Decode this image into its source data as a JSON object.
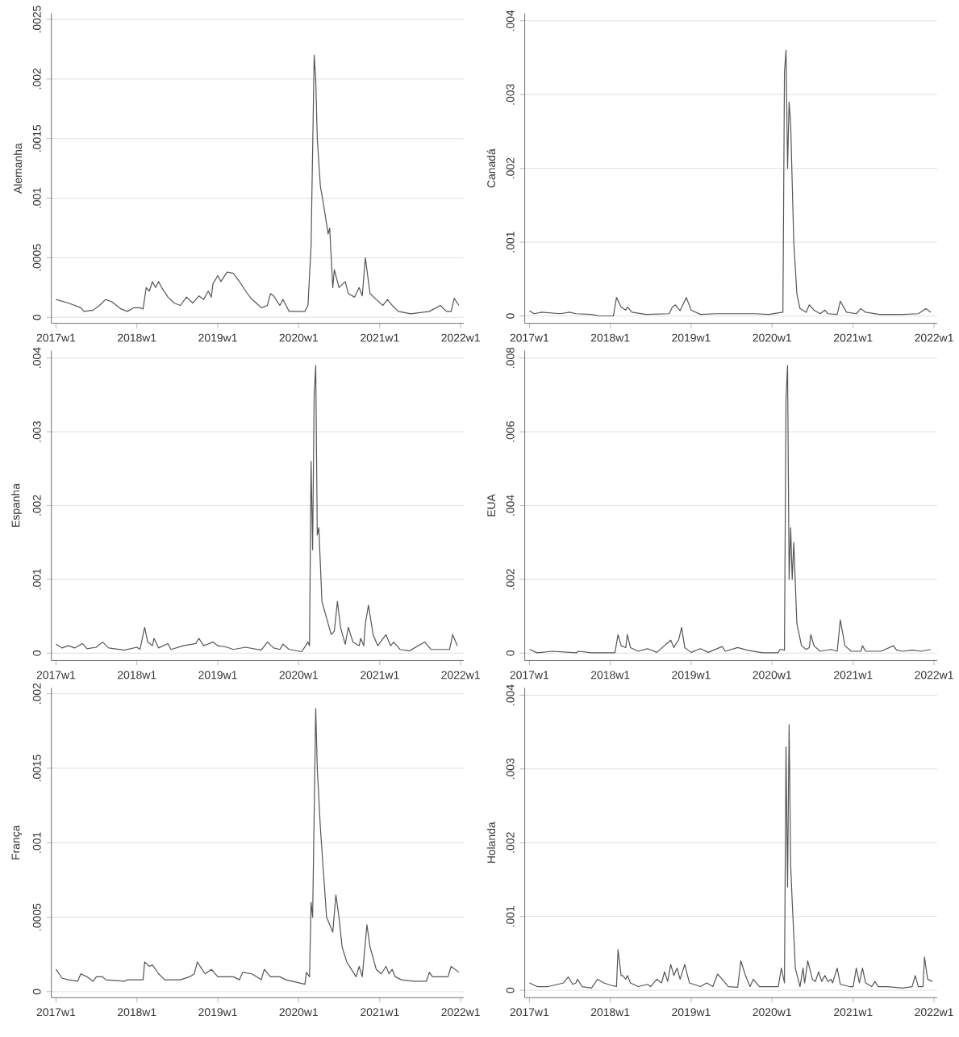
{
  "chart_data": [
    {
      "type": "line",
      "ylabel": "Alemanha",
      "color": "#555555",
      "grid": "y",
      "xlim": [
        "2016-12-11",
        "2022-01-15"
      ],
      "ylim": [
        -5e-05,
        0.00255
      ],
      "xticks": [
        {
          "value": "2017-01-01",
          "label": "2017w1"
        },
        {
          "value": "2018-01-01",
          "label": "2018w1"
        },
        {
          "value": "2019-01-01",
          "label": "2019w1"
        },
        {
          "value": "2020-01-01",
          "label": "2020w1"
        },
        {
          "value": "2021-01-01",
          "label": "2021w1"
        },
        {
          "value": "2022-01-01",
          "label": "2022w1"
        }
      ],
      "yticks": [
        0,
        {
          "value": 0.0005,
          "label": ".0005"
        },
        {
          "value": 0.001,
          "label": ".001"
        },
        {
          "value": 0.0015,
          "label": ".0015"
        },
        {
          "value": 0.002,
          "label": ".002"
        },
        {
          "value": 0.0025,
          "label": ".0025"
        }
      ],
      "x": [
        "2017-01-01",
        "2017-02-26",
        "2017-04-23",
        "2017-05-07",
        "2017-06-18",
        "2017-07-16",
        "2017-08-13",
        "2017-09-10",
        "2017-10-22",
        "2017-11-19",
        "2017-12-17",
        "2018-01-15",
        "2018-01-29",
        "2018-02-12",
        "2018-02-26",
        "2018-03-12",
        "2018-03-26",
        "2018-04-09",
        "2018-04-23",
        "2018-05-21",
        "2018-06-18",
        "2018-07-16",
        "2018-08-13",
        "2018-09-10",
        "2018-10-08",
        "2018-10-29",
        "2018-11-19",
        "2018-12-03",
        "2018-12-10",
        "2019-01-01",
        "2019-01-15",
        "2019-02-12",
        "2019-03-12",
        "2019-04-09",
        "2019-05-07",
        "2019-06-04",
        "2019-06-18",
        "2019-07-16",
        "2019-08-13",
        "2019-08-27",
        "2019-09-10",
        "2019-10-08",
        "2019-10-22",
        "2019-11-05",
        "2019-11-19",
        "2020-01-01",
        "2020-01-29",
        "2020-02-12",
        "2020-02-26",
        "2020-03-11",
        "2020-03-18",
        "2020-03-25",
        "2020-04-08",
        "2020-04-22",
        "2020-05-13",
        "2020-05-20",
        "2020-06-03",
        "2020-06-10",
        "2020-07-01",
        "2020-07-29",
        "2020-08-12",
        "2020-09-09",
        "2020-09-30",
        "2020-10-14",
        "2020-10-28",
        "2020-11-18",
        "2020-12-16",
        "2021-01-15",
        "2021-02-05",
        "2021-02-26",
        "2021-03-26",
        "2021-05-21",
        "2021-08-13",
        "2021-10-01",
        "2021-10-29",
        "2021-11-19",
        "2021-12-03",
        "2021-12-24"
      ],
      "values": [
        0.00015,
        0.00012,
        8e-05,
        5e-05,
        6e-05,
        0.0001,
        0.00015,
        0.00013,
        7e-05,
        5e-05,
        8e-05,
        8e-05,
        7e-05,
        0.00025,
        0.00022,
        0.0003,
        0.00025,
        0.0003,
        0.00025,
        0.00017,
        0.00012,
        0.0001,
        0.00017,
        0.00012,
        0.00018,
        0.00015,
        0.00022,
        0.00017,
        0.00028,
        0.00035,
        0.0003,
        0.00038,
        0.00037,
        0.0003,
        0.00022,
        0.00015,
        0.00013,
        8e-05,
        0.0001,
        0.0002,
        0.00018,
        0.0001,
        0.00015,
        0.0001,
        5e-05,
        5e-05,
        5e-05,
        0.0001,
        0.0006,
        0.0022,
        0.002,
        0.0015,
        0.0011,
        0.00095,
        0.0007,
        0.00075,
        0.00025,
        0.0004,
        0.00025,
        0.0003,
        0.0002,
        0.00017,
        0.00025,
        0.00018,
        0.0005,
        0.0002,
        0.00015,
        0.0001,
        0.00015,
        0.0001,
        5e-05,
        3e-05,
        5e-05,
        0.0001,
        5e-05,
        5e-05,
        0.00016,
        0.0001
      ]
    },
    {
      "type": "line",
      "ylabel": "Canadá",
      "color": "#555555",
      "grid": "y",
      "xlim": [
        "2016-12-11",
        "2022-01-15"
      ],
      "ylim": [
        -0.0001,
        0.0041
      ],
      "xticks": [
        {
          "value": "2017-01-01",
          "label": "2017w1"
        },
        {
          "value": "2018-01-01",
          "label": "2018w1"
        },
        {
          "value": "2019-01-01",
          "label": "2019w1"
        },
        {
          "value": "2020-01-01",
          "label": "2020w1"
        },
        {
          "value": "2021-01-01",
          "label": "2021w1"
        },
        {
          "value": "2022-01-01",
          "label": "2022w1"
        }
      ],
      "yticks": [
        0,
        {
          "value": 0.001,
          "label": ".001"
        },
        {
          "value": 0.002,
          "label": ".002"
        },
        {
          "value": 0.003,
          "label": ".003"
        },
        {
          "value": 0.004,
          "label": ".004"
        }
      ],
      "x": [
        "2017-01-01",
        "2017-01-22",
        "2017-02-26",
        "2017-05-21",
        "2017-07-02",
        "2017-07-30",
        "2017-10-08",
        "2017-11-12",
        "2018-01-15",
        "2018-01-29",
        "2018-02-19",
        "2018-03-12",
        "2018-03-19",
        "2018-04-09",
        "2018-06-11",
        "2018-09-24",
        "2018-10-08",
        "2018-10-22",
        "2018-11-12",
        "2018-12-10",
        "2019-01-01",
        "2019-02-12",
        "2019-04-23",
        "2019-07-02",
        "2019-10-15",
        "2019-12-17",
        "2020-02-19",
        "2020-02-26",
        "2020-03-04",
        "2020-03-11",
        "2020-03-18",
        "2020-03-25",
        "2020-04-08",
        "2020-04-22",
        "2020-05-06",
        "2020-06-03",
        "2020-06-17",
        "2020-07-08",
        "2020-08-05",
        "2020-08-26",
        "2020-09-09",
        "2020-10-21",
        "2020-11-04",
        "2020-12-02",
        "2021-01-15",
        "2021-02-05",
        "2021-02-26",
        "2021-04-30",
        "2021-08-13",
        "2021-10-22",
        "2021-11-26",
        "2021-12-17"
      ],
      "values": [
        7e-05,
        3e-05,
        5e-05,
        3e-05,
        5e-05,
        3e-05,
        2e-05,
        0,
        0,
        0.00025,
        0.00012,
        8e-05,
        0.00012,
        5e-05,
        2e-05,
        3e-05,
        0.00012,
        0.00015,
        7e-05,
        0.00025,
        8e-05,
        2e-05,
        3e-05,
        3e-05,
        3e-05,
        2e-05,
        5e-05,
        0.0033,
        0.0036,
        0.002,
        0.0029,
        0.0026,
        0.001,
        0.0003,
        0.0001,
        5e-05,
        0.00015,
        8e-05,
        3e-05,
        8e-05,
        3e-05,
        2e-05,
        0.0002,
        5e-05,
        3e-05,
        0.0001,
        5e-05,
        2e-05,
        2e-05,
        3e-05,
        0.0001,
        5e-05
      ]
    },
    {
      "type": "line",
      "ylabel": "Espanha",
      "color": "#555555",
      "grid": "y",
      "xlim": [
        "2016-12-11",
        "2022-01-15"
      ],
      "ylim": [
        -0.0001,
        0.0041
      ],
      "xticks": [
        {
          "value": "2017-01-01",
          "label": "2017w1"
        },
        {
          "value": "2018-01-01",
          "label": "2018w1"
        },
        {
          "value": "2019-01-01",
          "label": "2019w1"
        },
        {
          "value": "2020-01-01",
          "label": "2020w1"
        },
        {
          "value": "2021-01-01",
          "label": "2021w1"
        },
        {
          "value": "2022-01-01",
          "label": "2022w1"
        }
      ],
      "yticks": [
        0,
        {
          "value": 0.001,
          "label": ".001"
        },
        {
          "value": 0.002,
          "label": ".002"
        },
        {
          "value": 0.003,
          "label": ".003"
        },
        {
          "value": 0.004,
          "label": ".004"
        }
      ],
      "x": [
        "2017-01-01",
        "2017-01-29",
        "2017-02-26",
        "2017-03-26",
        "2017-04-30",
        "2017-05-21",
        "2017-07-02",
        "2017-07-30",
        "2017-08-27",
        "2017-11-05",
        "2018-01-01",
        "2018-01-15",
        "2018-02-05",
        "2018-02-19",
        "2018-03-12",
        "2018-03-19",
        "2018-04-09",
        "2018-05-21",
        "2018-06-04",
        "2018-07-30",
        "2018-09-24",
        "2018-10-08",
        "2018-10-29",
        "2018-12-10",
        "2019-01-01",
        "2019-02-12",
        "2019-03-12",
        "2019-05-07",
        "2019-07-16",
        "2019-08-13",
        "2019-09-10",
        "2019-10-08",
        "2019-10-22",
        "2019-11-19",
        "2020-01-15",
        "2020-02-12",
        "2020-02-19",
        "2020-02-26",
        "2020-03-04",
        "2020-03-11",
        "2020-03-18",
        "2020-03-25",
        "2020-04-01",
        "2020-04-15",
        "2020-05-13",
        "2020-05-27",
        "2020-06-10",
        "2020-06-24",
        "2020-07-08",
        "2020-07-29",
        "2020-08-12",
        "2020-09-02",
        "2020-09-30",
        "2020-10-07",
        "2020-10-21",
        "2020-10-28",
        "2020-11-11",
        "2020-12-02",
        "2020-12-23",
        "2021-01-29",
        "2021-02-19",
        "2021-03-05",
        "2021-04-02",
        "2021-05-14",
        "2021-07-23",
        "2021-08-20",
        "2021-11-12",
        "2021-11-26",
        "2021-12-17"
      ],
      "values": [
        0.00012,
        7e-05,
        0.0001,
        7e-05,
        0.00013,
        6e-05,
        8e-05,
        0.00015,
        7e-05,
        4e-05,
        8e-05,
        5e-05,
        0.00035,
        0.00015,
        0.0001,
        0.0002,
        7e-05,
        0.00013,
        5e-05,
        0.0001,
        0.00013,
        0.0002,
        0.0001,
        0.00015,
        0.0001,
        8e-05,
        5e-05,
        8e-05,
        4e-05,
        0.00015,
        7e-05,
        5e-05,
        0.00012,
        5e-05,
        2e-05,
        0.00015,
        0.0001,
        0.0026,
        0.0014,
        0.0035,
        0.0039,
        0.0016,
        0.0017,
        0.0007,
        0.0004,
        0.00025,
        0.0003,
        0.0007,
        0.00035,
        0.00012,
        0.00035,
        0.00015,
        0.0001,
        0.0002,
        0.0001,
        0.0004,
        0.00065,
        0.00025,
        0.0001,
        0.00025,
        0.0001,
        0.00015,
        5e-05,
        3e-05,
        0.00015,
        5e-05,
        5e-05,
        0.00025,
        0.0001
      ]
    },
    {
      "type": "line",
      "ylabel": "EUA",
      "color": "#555555",
      "grid": "y",
      "xlim": [
        "2016-12-11",
        "2022-01-15"
      ],
      "ylim": [
        -0.0002,
        0.0082
      ],
      "xticks": [
        {
          "value": "2017-01-01",
          "label": "2017w1"
        },
        {
          "value": "2018-01-01",
          "label": "2018w1"
        },
        {
          "value": "2019-01-01",
          "label": "2019w1"
        },
        {
          "value": "2020-01-01",
          "label": "2020w1"
        },
        {
          "value": "2021-01-01",
          "label": "2021w1"
        },
        {
          "value": "2022-01-01",
          "label": "2022w1"
        }
      ],
      "yticks": [
        0,
        {
          "value": 0.002,
          "label": ".002"
        },
        {
          "value": 0.004,
          "label": ".004"
        },
        {
          "value": 0.006,
          "label": ".006"
        },
        {
          "value": 0.008,
          "label": ".008"
        }
      ],
      "x": [
        "2017-01-01",
        "2017-02-05",
        "2017-04-16",
        "2017-07-30",
        "2017-08-13",
        "2017-10-08",
        "2018-01-22",
        "2018-02-05",
        "2018-02-19",
        "2018-03-12",
        "2018-03-19",
        "2018-04-02",
        "2018-05-07",
        "2018-06-18",
        "2018-07-30",
        "2018-10-01",
        "2018-10-15",
        "2018-10-29",
        "2018-11-05",
        "2018-11-19",
        "2018-12-03",
        "2019-01-01",
        "2019-02-12",
        "2019-03-19",
        "2019-05-21",
        "2019-06-04",
        "2019-07-30",
        "2019-09-10",
        "2019-11-19",
        "2020-01-29",
        "2020-02-05",
        "2020-02-26",
        "2020-03-04",
        "2020-03-11",
        "2020-03-18",
        "2020-03-25",
        "2020-04-01",
        "2020-04-08",
        "2020-04-22",
        "2020-05-13",
        "2020-06-03",
        "2020-06-17",
        "2020-06-24",
        "2020-07-08",
        "2020-08-05",
        "2020-09-23",
        "2020-10-21",
        "2020-11-04",
        "2020-11-25",
        "2020-12-23",
        "2021-02-05",
        "2021-02-12",
        "2021-02-26",
        "2021-05-07",
        "2021-07-02",
        "2021-07-16",
        "2021-08-13",
        "2021-09-24",
        "2021-11-05",
        "2021-12-17"
      ],
      "values": [
        0.0001,
        1e-05,
        5e-05,
        1e-05,
        5e-05,
        1e-05,
        1e-05,
        0.0005,
        0.0002,
        0.00015,
        0.0005,
        0.00015,
        5e-05,
        0.00012,
        2e-05,
        0.00035,
        0.00015,
        0.0003,
        0.00035,
        0.0007,
        0.00015,
        2e-05,
        0.00012,
        2e-05,
        0.00018,
        5e-05,
        0.00015,
        8e-05,
        1e-05,
        1e-05,
        0.0001,
        8e-05,
        0.0069,
        0.0078,
        0.002,
        0.0034,
        0.002,
        0.003,
        0.0008,
        0.0002,
        0.0001,
        0.00015,
        0.0005,
        0.0002,
        5e-05,
        0.0001,
        5e-05,
        0.0009,
        0.0002,
        5e-05,
        5e-05,
        0.0002,
        5e-05,
        5e-05,
        0.0002,
        8e-05,
        5e-05,
        8e-05,
        5e-05,
        0.0001
      ]
    },
    {
      "type": "line",
      "ylabel": "França",
      "color": "#555555",
      "grid": "y",
      "xlim": [
        "2016-12-11",
        "2022-01-15"
      ],
      "ylim": [
        -4e-05,
        0.00204
      ],
      "xticks": [
        {
          "value": "2017-01-01",
          "label": "2017w1"
        },
        {
          "value": "2018-01-01",
          "label": "2018w1"
        },
        {
          "value": "2019-01-01",
          "label": "2019w1"
        },
        {
          "value": "2020-01-01",
          "label": "2020w1"
        },
        {
          "value": "2021-01-01",
          "label": "2021w1"
        },
        {
          "value": "2022-01-01",
          "label": "2022w1"
        }
      ],
      "yticks": [
        0,
        {
          "value": 0.0005,
          "label": ".0005"
        },
        {
          "value": 0.001,
          "label": ".001"
        },
        {
          "value": 0.0015,
          "label": ".0015"
        },
        {
          "value": 0.002,
          "label": ".002"
        }
      ],
      "x": [
        "2017-01-01",
        "2017-01-29",
        "2017-02-26",
        "2017-04-09",
        "2017-04-23",
        "2017-05-21",
        "2017-06-18",
        "2017-07-02",
        "2017-07-30",
        "2017-08-13",
        "2017-11-05",
        "2017-11-19",
        "2018-01-15",
        "2018-01-29",
        "2018-02-05",
        "2018-02-26",
        "2018-03-12",
        "2018-04-09",
        "2018-05-07",
        "2018-07-16",
        "2018-08-27",
        "2018-09-17",
        "2018-10-01",
        "2018-10-22",
        "2018-11-05",
        "2018-12-03",
        "2019-01-01",
        "2019-02-12",
        "2019-03-12",
        "2019-04-09",
        "2019-04-23",
        "2019-06-04",
        "2019-07-16",
        "2019-07-30",
        "2019-08-27",
        "2019-10-08",
        "2019-11-05",
        "2020-01-29",
        "2020-02-05",
        "2020-02-19",
        "2020-02-26",
        "2020-03-04",
        "2020-03-18",
        "2020-03-25",
        "2020-04-08",
        "2020-04-22",
        "2020-05-06",
        "2020-05-20",
        "2020-06-03",
        "2020-06-17",
        "2020-07-01",
        "2020-07-15",
        "2020-08-05",
        "2020-08-26",
        "2020-09-16",
        "2020-09-30",
        "2020-10-14",
        "2020-11-04",
        "2020-11-18",
        "2020-12-16",
        "2021-01-08",
        "2021-01-29",
        "2021-02-12",
        "2021-02-26",
        "2021-03-12",
        "2021-04-09",
        "2021-06-04",
        "2021-07-30",
        "2021-08-13",
        "2021-08-27",
        "2021-11-05",
        "2021-11-19",
        "2021-12-24"
      ],
      "values": [
        0.00015,
        9e-05,
        8e-05,
        7e-05,
        0.00012,
        0.0001,
        7e-05,
        0.0001,
        0.0001,
        8e-05,
        7e-05,
        8e-05,
        8e-05,
        8e-05,
        0.0002,
        0.00017,
        0.00018,
        0.00012,
        8e-05,
        8e-05,
        0.0001,
        0.00012,
        0.0002,
        0.00015,
        0.00012,
        0.00015,
        0.0001,
        0.0001,
        0.0001,
        8e-05,
        0.00013,
        0.00012,
        8e-05,
        0.00015,
        0.0001,
        0.0001,
        8e-05,
        5e-05,
        0.00013,
        0.0001,
        0.0006,
        0.0005,
        0.0019,
        0.0015,
        0.0011,
        0.0008,
        0.0005,
        0.00045,
        0.0004,
        0.00065,
        0.0005,
        0.0003,
        0.0002,
        0.00015,
        0.0001,
        0.00017,
        0.0001,
        0.00045,
        0.0003,
        0.00015,
        0.00012,
        0.00017,
        0.00012,
        0.00015,
        0.0001,
        8e-05,
        7e-05,
        7e-05,
        0.00013,
        0.0001,
        0.0001,
        0.00017,
        0.00013
      ]
    },
    {
      "type": "line",
      "ylabel": "Holanda",
      "color": "#555555",
      "grid": "y",
      "xlim": [
        "2016-12-11",
        "2022-01-15"
      ],
      "ylim": [
        -0.0001,
        0.0041
      ],
      "xticks": [
        {
          "value": "2017-01-01",
          "label": "2017w1"
        },
        {
          "value": "2018-01-01",
          "label": "2018w1"
        },
        {
          "value": "2019-01-01",
          "label": "2019w1"
        },
        {
          "value": "2020-01-01",
          "label": "2020w1"
        },
        {
          "value": "2021-01-01",
          "label": "2021w1"
        },
        {
          "value": "2022-01-01",
          "label": "2022w1"
        }
      ],
      "yticks": [
        0,
        {
          "value": 0.001,
          "label": ".001"
        },
        {
          "value": 0.002,
          "label": ".002"
        },
        {
          "value": 0.003,
          "label": ".003"
        },
        {
          "value": 0.004,
          "label": ".004"
        }
      ],
      "x": [
        "2017-01-01",
        "2017-02-05",
        "2017-03-26",
        "2017-04-23",
        "2017-06-04",
        "2017-06-25",
        "2017-07-16",
        "2017-07-30",
        "2017-08-06",
        "2017-08-27",
        "2017-10-08",
        "2017-11-05",
        "2017-12-03",
        "2018-01-01",
        "2018-01-29",
        "2018-02-05",
        "2018-02-19",
        "2018-02-26",
        "2018-03-12",
        "2018-03-19",
        "2018-04-02",
        "2018-05-07",
        "2018-06-18",
        "2018-07-02",
        "2018-07-30",
        "2018-08-20",
        "2018-09-03",
        "2018-09-17",
        "2018-10-01",
        "2018-10-15",
        "2018-10-29",
        "2018-11-12",
        "2018-12-03",
        "2018-12-24",
        "2019-02-12",
        "2019-03-12",
        "2019-04-09",
        "2019-04-30",
        "2019-05-21",
        "2019-06-18",
        "2019-07-30",
        "2019-08-13",
        "2019-09-03",
        "2019-09-24",
        "2019-10-08",
        "2019-11-05",
        "2020-01-01",
        "2020-01-29",
        "2020-02-12",
        "2020-02-26",
        "2020-03-04",
        "2020-03-11",
        "2020-03-18",
        "2020-03-25",
        "2020-04-01",
        "2020-04-15",
        "2020-05-06",
        "2020-05-20",
        "2020-05-27",
        "2020-06-10",
        "2020-07-01",
        "2020-07-15",
        "2020-07-29",
        "2020-08-12",
        "2020-08-26",
        "2020-09-09",
        "2020-09-23",
        "2020-09-30",
        "2020-10-21",
        "2020-11-04",
        "2020-12-16",
        "2021-01-01",
        "2021-01-15",
        "2021-01-29",
        "2021-02-12",
        "2021-02-26",
        "2021-03-26",
        "2021-04-09",
        "2021-04-23",
        "2021-06-04",
        "2021-08-13",
        "2021-09-24",
        "2021-10-08",
        "2021-10-22",
        "2021-11-12",
        "2021-11-19",
        "2021-12-03",
        "2021-12-24"
      ],
      "values": [
        0.0001,
        5e-05,
        5e-05,
        7e-05,
        0.0001,
        0.00018,
        8e-05,
        0.0001,
        0.00015,
        5e-05,
        3e-05,
        0.00015,
        0.0001,
        7e-05,
        5e-05,
        0.00055,
        0.0002,
        0.0002,
        0.00015,
        0.0002,
        0.0001,
        5e-05,
        8e-05,
        5e-05,
        0.00015,
        0.0001,
        0.00025,
        0.00012,
        0.00035,
        0.0002,
        0.0003,
        0.00015,
        0.00035,
        0.0001,
        5e-05,
        0.0001,
        5e-05,
        0.00022,
        0.00015,
        5e-05,
        4e-05,
        0.0004,
        0.0002,
        5e-05,
        0.00015,
        5e-05,
        5e-05,
        5e-05,
        0.0003,
        0.0001,
        0.0033,
        0.0014,
        0.0036,
        0.0017,
        0.0012,
        0.0003,
        5e-05,
        0.0003,
        0.0001,
        0.0004,
        0.00015,
        0.00012,
        0.00025,
        0.00012,
        0.0002,
        0.00012,
        0.00015,
        0.0001,
        0.0003,
        8e-05,
        5e-05,
        5e-05,
        0.0003,
        0.0001,
        0.0003,
        0.0001,
        5e-05,
        0.00012,
        5e-05,
        5e-05,
        3e-05,
        5e-05,
        0.0002,
        5e-05,
        5e-05,
        0.00045,
        0.00015,
        0.00012
      ]
    }
  ]
}
